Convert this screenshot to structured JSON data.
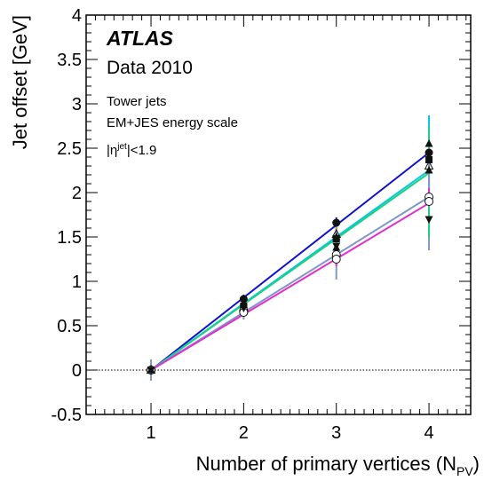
{
  "chart_data": {
    "type": "scatter",
    "xlabel": "Number of primary vertices (N",
    "xlabel_sub": "PV",
    "xlabel_end": ")",
    "ylabel": "Jet offset [GeV]",
    "xlim": [
      0.3,
      4.45
    ],
    "ylim": [
      -0.5,
      4
    ],
    "x_ticks": [
      "1",
      "2",
      "3",
      "4"
    ],
    "y_ticks": [
      "-0.5",
      "0",
      "0.5",
      "1",
      "1.5",
      "2",
      "2.5",
      "3",
      "3.5",
      "4"
    ],
    "reference_line": 0,
    "annotations": {
      "atlas": "ATLAS",
      "dataset": "Data 2010",
      "line1": "Tower jets",
      "line2": "EM+JES energy scale",
      "eta_prefix": "|η",
      "eta_sup": "jet",
      "eta_suffix": "|<1.9"
    },
    "series": [
      {
        "color": "#1010d0",
        "marker": "circle-filled",
        "x": [
          1,
          2,
          3,
          4
        ],
        "y": [
          0.0,
          0.8,
          1.66,
          2.45
        ],
        "err": [
          0.05,
          0.05,
          0.06,
          0.1
        ]
      },
      {
        "color": "#00c8e0",
        "marker": "square-filled",
        "x": [
          1,
          2,
          3,
          4
        ],
        "y": [
          0.0,
          0.72,
          1.48,
          2.37
        ],
        "err": [
          0.08,
          0.07,
          0.2,
          0.5
        ]
      },
      {
        "color": "#20d080",
        "marker": "triangle-up",
        "x": [
          1,
          2,
          3,
          4
        ],
        "y": [
          0.0,
          0.74,
          1.5,
          2.25
        ],
        "err": [
          0.05,
          0.05,
          0.1,
          0.25
        ]
      },
      {
        "color": "#d4a010",
        "marker": "triangle-up-open",
        "x": [
          1,
          2,
          3,
          4
        ],
        "y": [
          0.0,
          0.7,
          1.53,
          2.3
        ],
        "err": [
          0.05,
          0.05,
          0.08,
          0.2
        ]
      },
      {
        "color": "#8098c8",
        "marker": "circle-open",
        "x": [
          1,
          2,
          3,
          4
        ],
        "y": [
          0.0,
          0.67,
          1.3,
          1.95
        ],
        "err": [
          0.12,
          0.1,
          0.28,
          0.6
        ]
      },
      {
        "color": "#e030d0",
        "marker": "circle-open",
        "x": [
          1,
          2,
          3,
          4
        ],
        "y": [
          0.0,
          0.65,
          1.25,
          1.9
        ],
        "err": [
          0.05,
          0.05,
          0.08,
          0.15
        ]
      },
      {
        "color": "#20d080",
        "marker": "triangle-down",
        "x": [
          1,
          2,
          3,
          4
        ],
        "y": [
          0.0,
          0.7,
          1.4,
          1.7
        ],
        "err": [
          0.05,
          0.05,
          0.1,
          0.2
        ]
      },
      {
        "color": "#20d080",
        "marker": "triangle-up",
        "x": [
          1,
          2,
          3,
          4
        ],
        "y": [
          0.0,
          0.74,
          1.38,
          2.55
        ],
        "err": [
          0.05,
          0.05,
          0.1,
          0.2
        ]
      }
    ],
    "fit_lines": [
      {
        "color": "#1010d0",
        "x": [
          1,
          4
        ],
        "y": [
          0.0,
          2.45
        ]
      },
      {
        "color": "#00c8e0",
        "x": [
          1,
          4
        ],
        "y": [
          0.0,
          2.25
        ]
      },
      {
        "color": "#20d080",
        "x": [
          1,
          4
        ],
        "y": [
          0.0,
          2.22
        ]
      },
      {
        "color": "#8098c8",
        "x": [
          1,
          4
        ],
        "y": [
          0.0,
          1.95
        ]
      },
      {
        "color": "#e030d0",
        "x": [
          1,
          4
        ],
        "y": [
          0.0,
          1.88
        ]
      }
    ]
  }
}
